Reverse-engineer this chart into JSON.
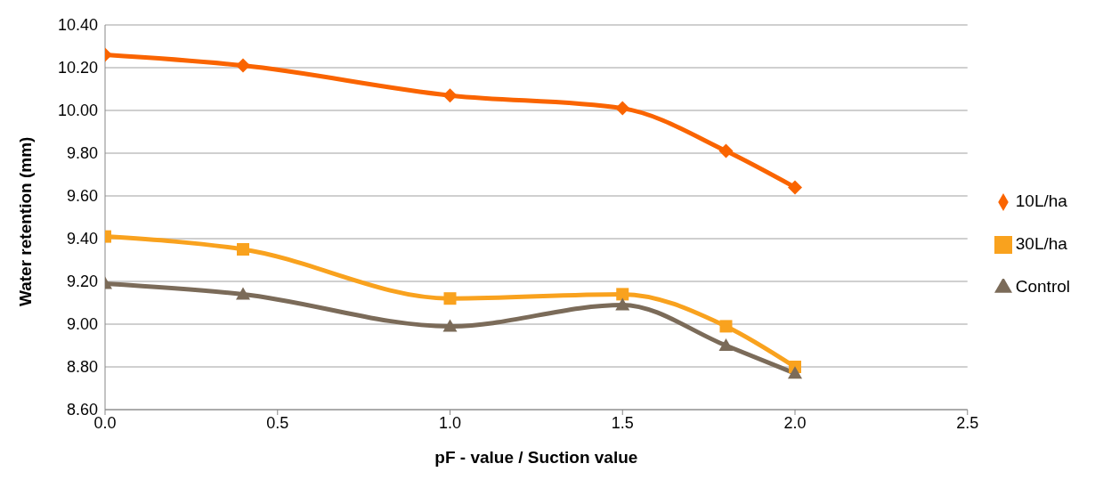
{
  "chart_data": {
    "type": "line",
    "xlabel": "pF - value / Suction value",
    "ylabel": "Water retention (mm)",
    "x": [
      0,
      0.4,
      1.0,
      1.5,
      1.8,
      2.0
    ],
    "series": [
      {
        "name": "10L/ha",
        "color": "#fa6400",
        "marker": "diamond",
        "values": [
          10.26,
          10.21,
          10.07,
          10.01,
          9.81,
          9.64
        ]
      },
      {
        "name": "30L/ha",
        "color": "#f9a21e",
        "marker": "square",
        "values": [
          9.41,
          9.35,
          9.12,
          9.14,
          8.99,
          8.8
        ]
      },
      {
        "name": "Control",
        "color": "#7b6b59",
        "marker": "triangle",
        "values": [
          9.19,
          9.14,
          8.99,
          9.09,
          8.9,
          8.77
        ]
      }
    ],
    "xlim": [
      0,
      2.5
    ],
    "xticks": [
      {
        "value": 0,
        "label": "0.0"
      },
      {
        "value": 0.5,
        "label": "0.5"
      },
      {
        "value": 1,
        "label": "1.0"
      },
      {
        "value": 1.5,
        "label": "1.5"
      },
      {
        "value": 2,
        "label": "2.0"
      },
      {
        "value": 2.5,
        "label": "2.5"
      }
    ],
    "ylim": [
      8.6,
      10.4
    ],
    "yticks": [
      {
        "value": 8.6,
        "label": "8.60"
      },
      {
        "value": 8.8,
        "label": "8.80"
      },
      {
        "value": 9.0,
        "label": "9.00"
      },
      {
        "value": 9.2,
        "label": "9.20"
      },
      {
        "value": 9.4,
        "label": "9.40"
      },
      {
        "value": 9.6,
        "label": "9.60"
      },
      {
        "value": 9.8,
        "label": "9.80"
      },
      {
        "value": 10.0,
        "label": "10.00"
      },
      {
        "value": 10.2,
        "label": "10.20"
      },
      {
        "value": 10.4,
        "label": "10.40"
      }
    ],
    "grid": "y",
    "legend": "right",
    "line_style": "solid"
  }
}
